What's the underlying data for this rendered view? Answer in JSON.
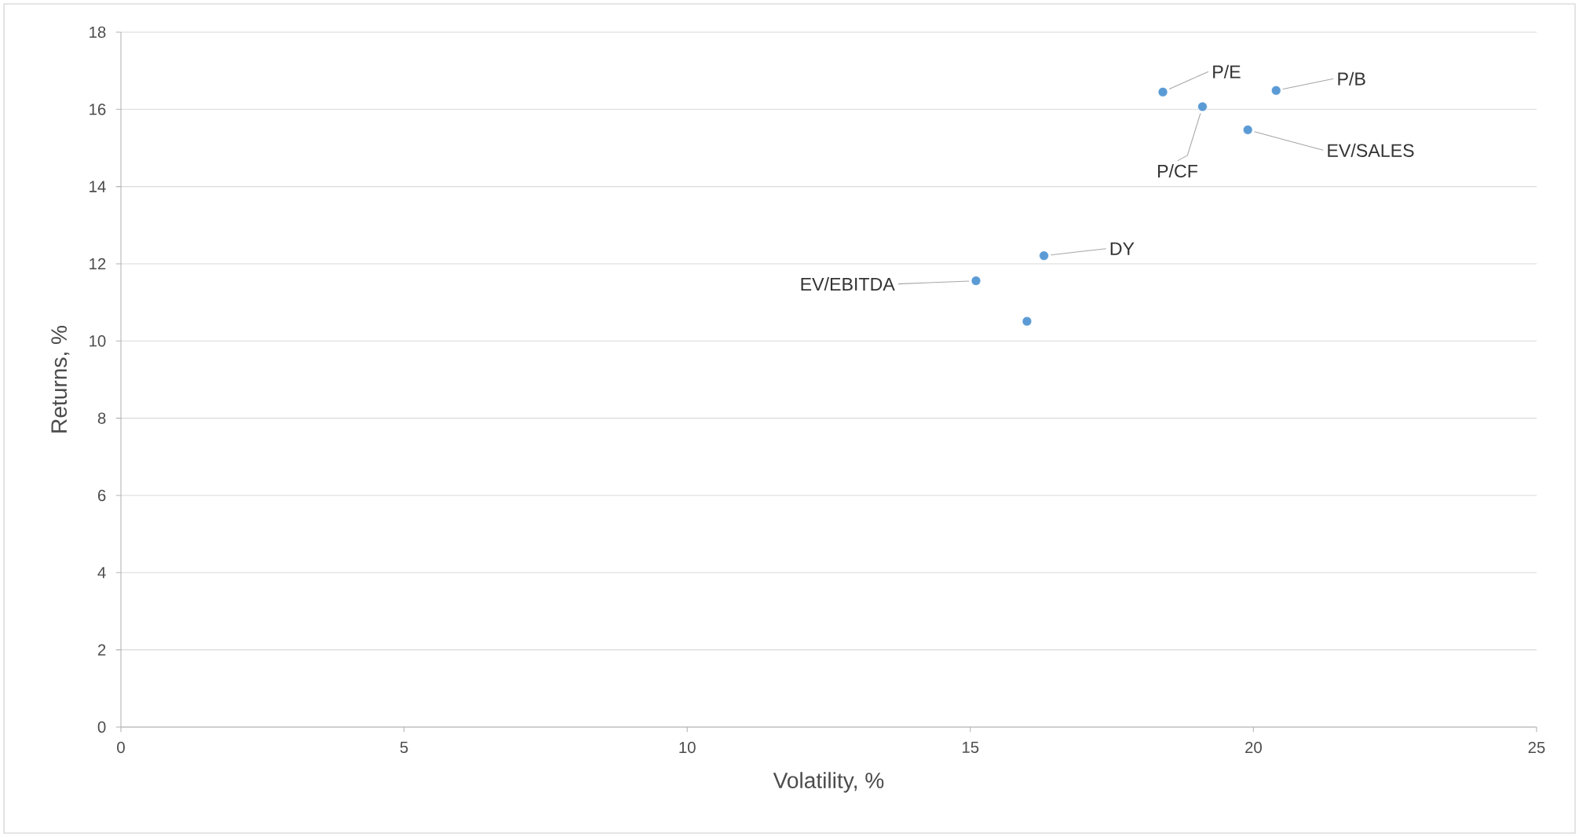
{
  "chart_data": {
    "type": "scatter",
    "xlabel": "Volatility, %",
    "ylabel": "Returns, %",
    "x": [
      18.4,
      19.1,
      20.4,
      19.9,
      16.3,
      15.1,
      16.0
    ],
    "series": [
      {
        "color": "#5b9bd5",
        "values": [
          16.45,
          16.07,
          16.49,
          15.47,
          12.21,
          11.56,
          10.51
        ]
      }
    ],
    "annotations": [
      {
        "text": "P/E",
        "x": 18.4,
        "y": 16.45
      },
      {
        "text": "P/CF",
        "x": 19.1,
        "y": 16.07
      },
      {
        "text": "P/B",
        "x": 20.4,
        "y": 16.49
      },
      {
        "text": "EV/SALES",
        "x": 19.9,
        "y": 15.47
      },
      {
        "text": "DY",
        "x": 16.3,
        "y": 12.21
      },
      {
        "text": "EV/EBITDA",
        "x": 15.1,
        "y": 11.56
      }
    ],
    "xlim": [
      0,
      25
    ],
    "ylim": [
      0,
      18
    ],
    "xticks": [
      0,
      5,
      10,
      15,
      20,
      25
    ],
    "yticks": [
      0,
      2,
      4,
      6,
      8,
      10,
      12,
      14,
      16,
      18
    ],
    "grid": "y",
    "marker": "circle"
  }
}
